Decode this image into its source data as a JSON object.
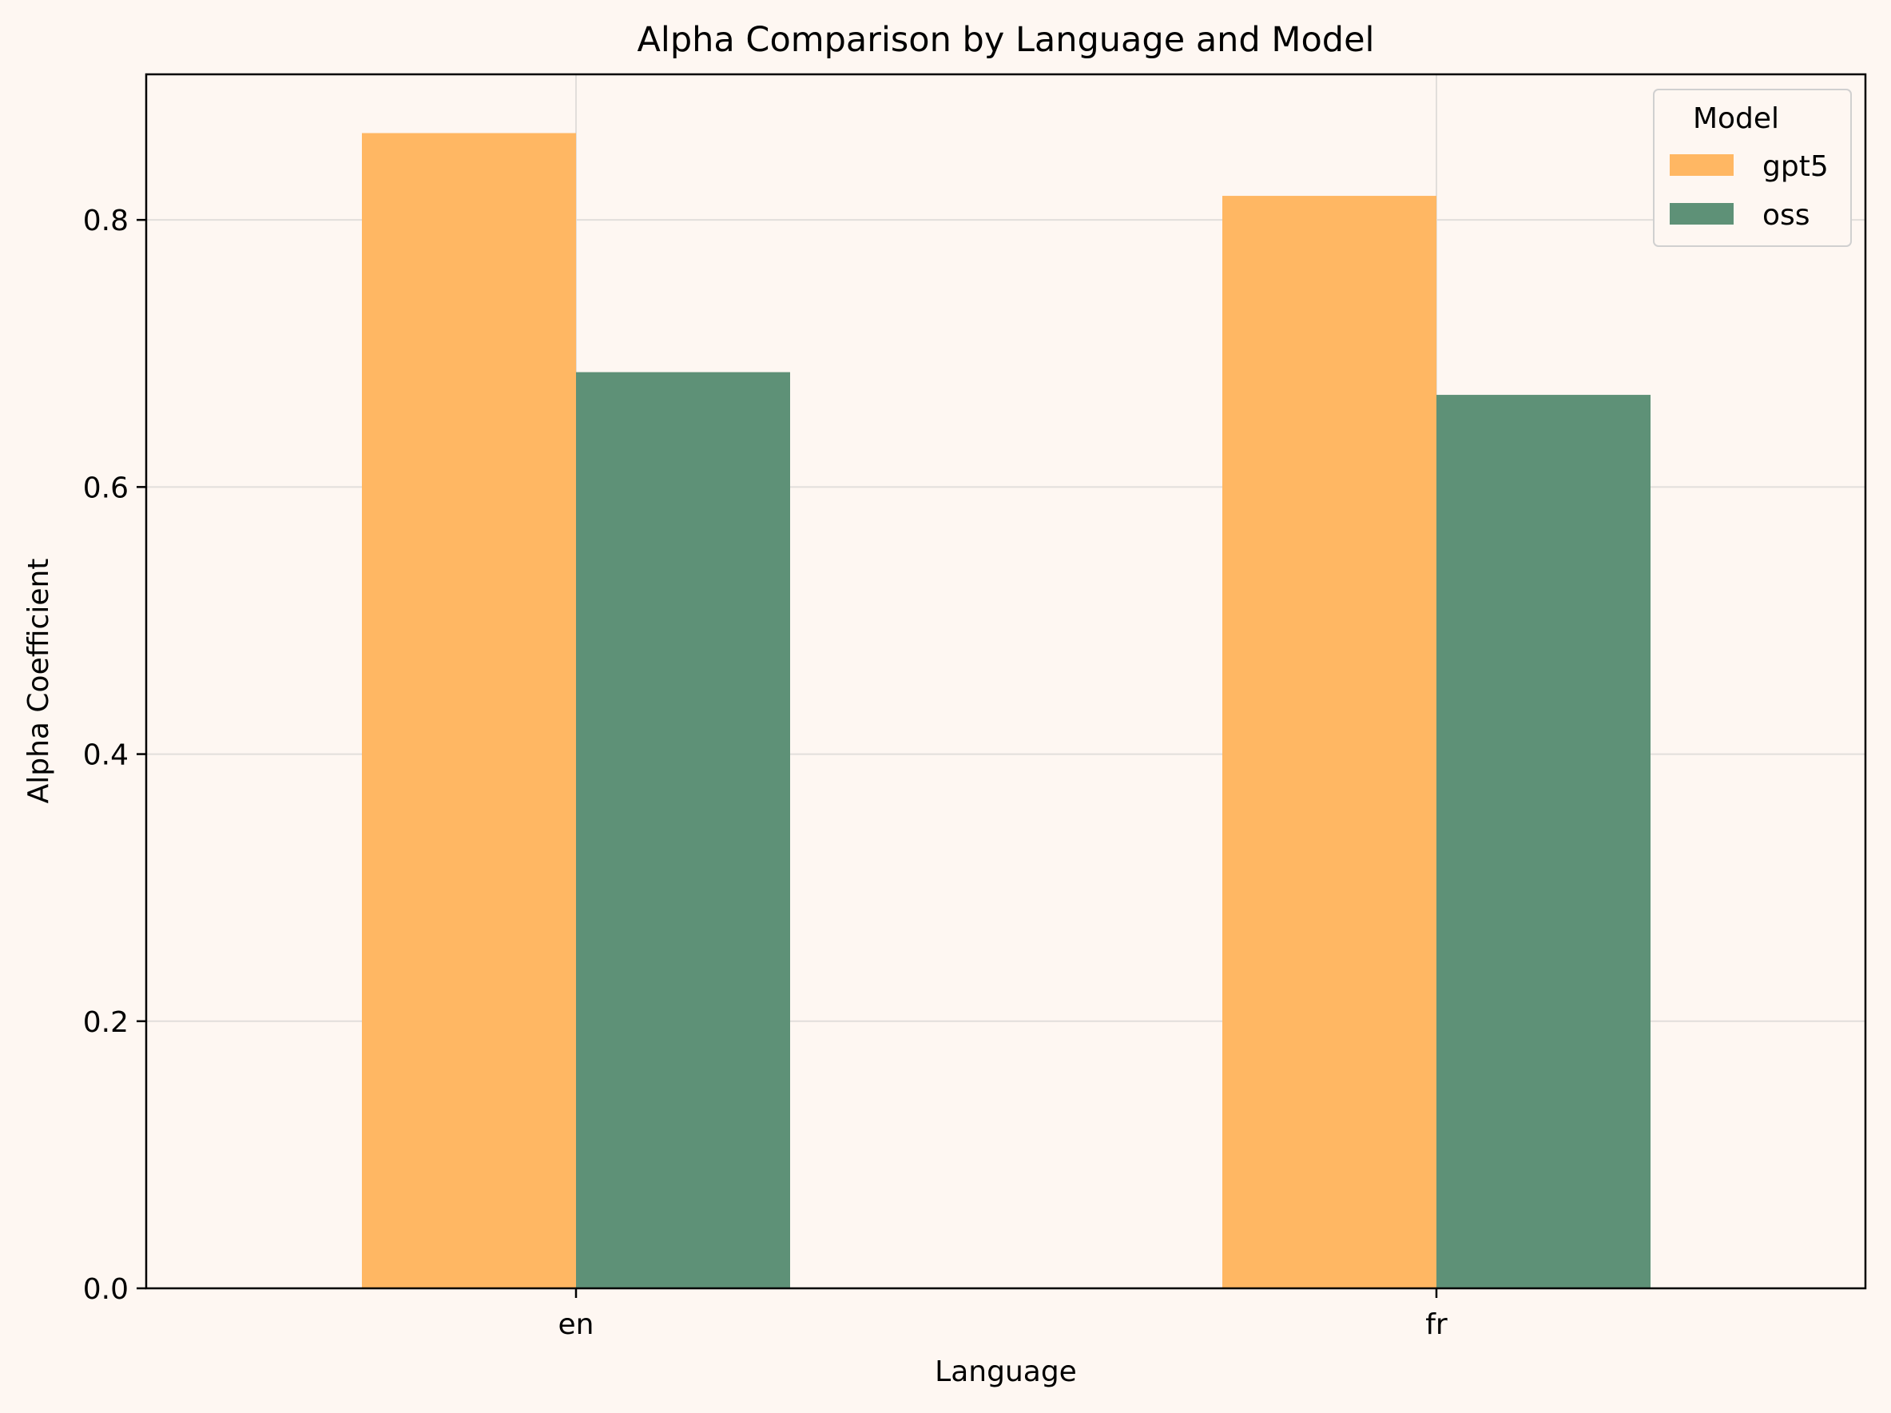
{
  "chart_data": {
    "type": "bar",
    "title": "Alpha Comparison by Language and Model",
    "xlabel": "Language",
    "ylabel": "Alpha Coefficient",
    "categories": [
      "en",
      "fr"
    ],
    "series": [
      {
        "name": "gpt5",
        "values": [
          0.865,
          0.818
        ],
        "color": "#ffb763"
      },
      {
        "name": "oss",
        "values": [
          0.686,
          0.669
        ],
        "color": "#5e9177"
      }
    ],
    "ylim": [
      0,
      0.909
    ],
    "yticks": [
      0.0,
      0.2,
      0.4,
      0.6,
      0.8
    ],
    "ytick_labels": [
      "0.0",
      "0.2",
      "0.4",
      "0.6",
      "0.8"
    ],
    "grid": true,
    "legend": {
      "title": "Model",
      "placement": "top-right"
    }
  }
}
